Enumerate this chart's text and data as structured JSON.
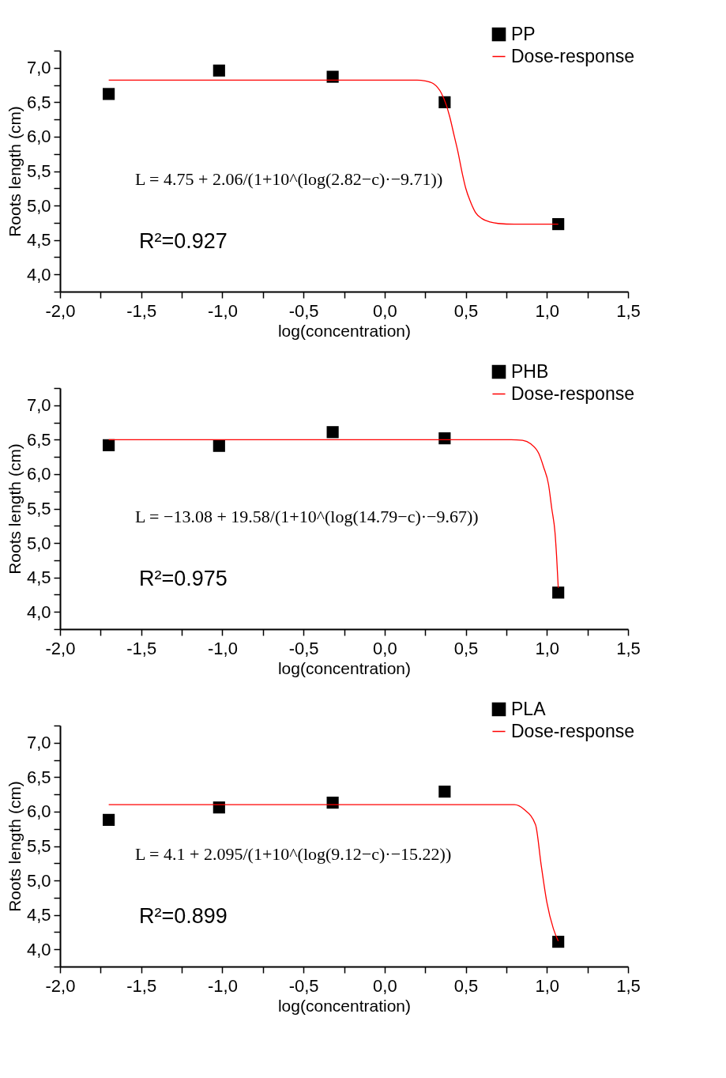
{
  "chart_data": [
    {
      "type": "scatter",
      "xlabel": "log(concentration)",
      "ylabel": "Roots length (cm)",
      "xlim": [
        -2.0,
        1.5
      ],
      "ylim": [
        3.75,
        7.25
      ],
      "xticks": [
        {
          "value": -2.0,
          "label": "-2,0"
        },
        {
          "value": -1.75,
          "label": null
        },
        {
          "value": -1.5,
          "label": "-1,5"
        },
        {
          "value": -1.25,
          "label": null
        },
        {
          "value": -1.0,
          "label": "-1,0"
        },
        {
          "value": -0.75,
          "label": null
        },
        {
          "value": -0.5,
          "label": "-0,5"
        },
        {
          "value": -0.25,
          "label": null
        },
        {
          "value": 0.0,
          "label": "0,0"
        },
        {
          "value": 0.25,
          "label": null
        },
        {
          "value": 0.5,
          "label": "0,5"
        },
        {
          "value": 0.75,
          "label": null
        },
        {
          "value": 1.0,
          "label": "1,0"
        },
        {
          "value": 1.25,
          "label": null
        },
        {
          "value": 1.5,
          "label": "1,5"
        }
      ],
      "yticks": [
        {
          "value": 3.75,
          "label": null
        },
        {
          "value": 4.0,
          "label": "4,0"
        },
        {
          "value": 4.25,
          "label": null
        },
        {
          "value": 4.5,
          "label": "4,5"
        },
        {
          "value": 4.75,
          "label": null
        },
        {
          "value": 5.0,
          "label": "5,0"
        },
        {
          "value": 5.25,
          "label": null
        },
        {
          "value": 5.5,
          "label": "5,5"
        },
        {
          "value": 5.75,
          "label": null
        },
        {
          "value": 6.0,
          "label": "6,0"
        },
        {
          "value": 6.25,
          "label": null
        },
        {
          "value": 6.5,
          "label": "6,5"
        },
        {
          "value": 6.75,
          "label": null
        },
        {
          "value": 7.0,
          "label": "7,0"
        },
        {
          "value": 7.25,
          "label": null
        }
      ],
      "grid": false,
      "legend": "top right",
      "annotations": [
        "L = 4.75 + 2.06/(1+10^(log(2.82−c)·−9.71))",
        "R²=0.927"
      ],
      "series": [
        {
          "name": "PP",
          "marker": "square",
          "color": "#000000",
          "x": [
            -1.7,
            -1.02,
            -0.32,
            0.37,
            1.07
          ],
          "values": [
            6.62,
            6.96,
            6.87,
            6.5,
            4.73
          ]
        },
        {
          "name": "Dose-response",
          "type": "line",
          "color": "#ff0000",
          "x": [
            -1.7,
            -1.0,
            0.0,
            0.2,
            0.25,
            0.3,
            0.35,
            0.38,
            0.4,
            0.43,
            0.45,
            0.48,
            0.5,
            0.53,
            0.56,
            0.6,
            0.65,
            0.7,
            0.8,
            1.07
          ],
          "values": [
            6.82,
            6.82,
            6.82,
            6.82,
            6.81,
            6.77,
            6.63,
            6.46,
            6.3,
            6.0,
            5.8,
            5.45,
            5.25,
            5.05,
            4.9,
            4.81,
            4.76,
            4.74,
            4.73,
            4.73
          ]
        }
      ]
    },
    {
      "type": "scatter",
      "xlabel": "log(concentration)",
      "ylabel": "Roots length (cm)",
      "xlim": [
        -2.0,
        1.5
      ],
      "ylim": [
        3.75,
        7.25
      ],
      "xticks": [
        {
          "value": -2.0,
          "label": "-2,0"
        },
        {
          "value": -1.75,
          "label": null
        },
        {
          "value": -1.5,
          "label": "-1,5"
        },
        {
          "value": -1.25,
          "label": null
        },
        {
          "value": -1.0,
          "label": "-1,0"
        },
        {
          "value": -0.75,
          "label": null
        },
        {
          "value": -0.5,
          "label": "-0,5"
        },
        {
          "value": -0.25,
          "label": null
        },
        {
          "value": 0.0,
          "label": "0,0"
        },
        {
          "value": 0.25,
          "label": null
        },
        {
          "value": 0.5,
          "label": "0,5"
        },
        {
          "value": 0.75,
          "label": null
        },
        {
          "value": 1.0,
          "label": "1,0"
        },
        {
          "value": 1.25,
          "label": null
        },
        {
          "value": 1.5,
          "label": "1,5"
        }
      ],
      "yticks": [
        {
          "value": 3.75,
          "label": null
        },
        {
          "value": 4.0,
          "label": "4,0"
        },
        {
          "value": 4.25,
          "label": null
        },
        {
          "value": 4.5,
          "label": "4,5"
        },
        {
          "value": 4.75,
          "label": null
        },
        {
          "value": 5.0,
          "label": "5,0"
        },
        {
          "value": 5.25,
          "label": null
        },
        {
          "value": 5.5,
          "label": "5,5"
        },
        {
          "value": 5.75,
          "label": null
        },
        {
          "value": 6.0,
          "label": "6,0"
        },
        {
          "value": 6.25,
          "label": null
        },
        {
          "value": 6.5,
          "label": "6,5"
        },
        {
          "value": 6.75,
          "label": null
        },
        {
          "value": 7.0,
          "label": "7,0"
        },
        {
          "value": 7.25,
          "label": null
        }
      ],
      "grid": false,
      "legend": "top right",
      "annotations": [
        "L = −13.08 + 19.58/(1+10^(log(14.79−c)·−9.67))",
        "R²=0.975"
      ],
      "series": [
        {
          "name": "PHB",
          "marker": "square",
          "color": "#000000",
          "x": [
            -1.7,
            -1.02,
            -0.32,
            0.37,
            1.07
          ],
          "values": [
            6.42,
            6.41,
            6.61,
            6.52,
            4.28
          ]
        },
        {
          "name": "Dose-response",
          "type": "line",
          "color": "#ff0000",
          "x": [
            -1.7,
            0.0,
            0.78,
            0.85,
            0.9,
            0.95,
            0.98,
            1.01,
            1.03,
            1.05,
            1.06,
            1.07
          ],
          "values": [
            6.5,
            6.5,
            6.5,
            6.49,
            6.44,
            6.3,
            6.1,
            5.85,
            5.5,
            5.15,
            4.8,
            4.35
          ]
        }
      ]
    },
    {
      "type": "scatter",
      "xlabel": "log(concentration)",
      "ylabel": "Roots length (cm)",
      "xlim": [
        -2.0,
        1.5
      ],
      "ylim": [
        3.75,
        7.25
      ],
      "xticks": [
        {
          "value": -2.0,
          "label": "-2,0"
        },
        {
          "value": -1.75,
          "label": null
        },
        {
          "value": -1.5,
          "label": "-1,5"
        },
        {
          "value": -1.25,
          "label": null
        },
        {
          "value": -1.0,
          "label": "-1,0"
        },
        {
          "value": -0.75,
          "label": null
        },
        {
          "value": -0.5,
          "label": "-0,5"
        },
        {
          "value": -0.25,
          "label": null
        },
        {
          "value": 0.0,
          "label": "0,0"
        },
        {
          "value": 0.25,
          "label": null
        },
        {
          "value": 0.5,
          "label": "0,5"
        },
        {
          "value": 0.75,
          "label": null
        },
        {
          "value": 1.0,
          "label": "1,0"
        },
        {
          "value": 1.25,
          "label": null
        },
        {
          "value": 1.5,
          "label": "1,5"
        }
      ],
      "yticks": [
        {
          "value": 3.75,
          "label": null
        },
        {
          "value": 4.0,
          "label": "4,0"
        },
        {
          "value": 4.25,
          "label": null
        },
        {
          "value": 4.5,
          "label": "4,5"
        },
        {
          "value": 4.75,
          "label": null
        },
        {
          "value": 5.0,
          "label": "5,0"
        },
        {
          "value": 5.25,
          "label": null
        },
        {
          "value": 5.5,
          "label": "5,5"
        },
        {
          "value": 5.75,
          "label": null
        },
        {
          "value": 6.0,
          "label": "6,0"
        },
        {
          "value": 6.25,
          "label": null
        },
        {
          "value": 6.5,
          "label": "6,5"
        },
        {
          "value": 6.75,
          "label": null
        },
        {
          "value": 7.0,
          "label": "7,0"
        },
        {
          "value": 7.25,
          "label": null
        }
      ],
      "grid": false,
      "legend": "top right",
      "annotations": [
        "L = 4.1 + 2.095/(1+10^(log(9.12−c)·−15.22))",
        "R²=0.899"
      ],
      "series": [
        {
          "name": "PLA",
          "marker": "square",
          "color": "#000000",
          "x": [
            -1.7,
            -1.02,
            -0.32,
            0.37,
            1.07
          ],
          "values": [
            5.88,
            6.06,
            6.13,
            6.29,
            4.11
          ]
        },
        {
          "name": "Dose-response",
          "type": "line",
          "color": "#ff0000",
          "x": [
            -1.7,
            0.0,
            0.8,
            0.86,
            0.93,
            0.965,
            1.0,
            1.04,
            1.07
          ],
          "values": [
            6.1,
            6.1,
            6.1,
            6.03,
            5.81,
            5.22,
            4.68,
            4.3,
            4.12
          ]
        }
      ]
    }
  ]
}
